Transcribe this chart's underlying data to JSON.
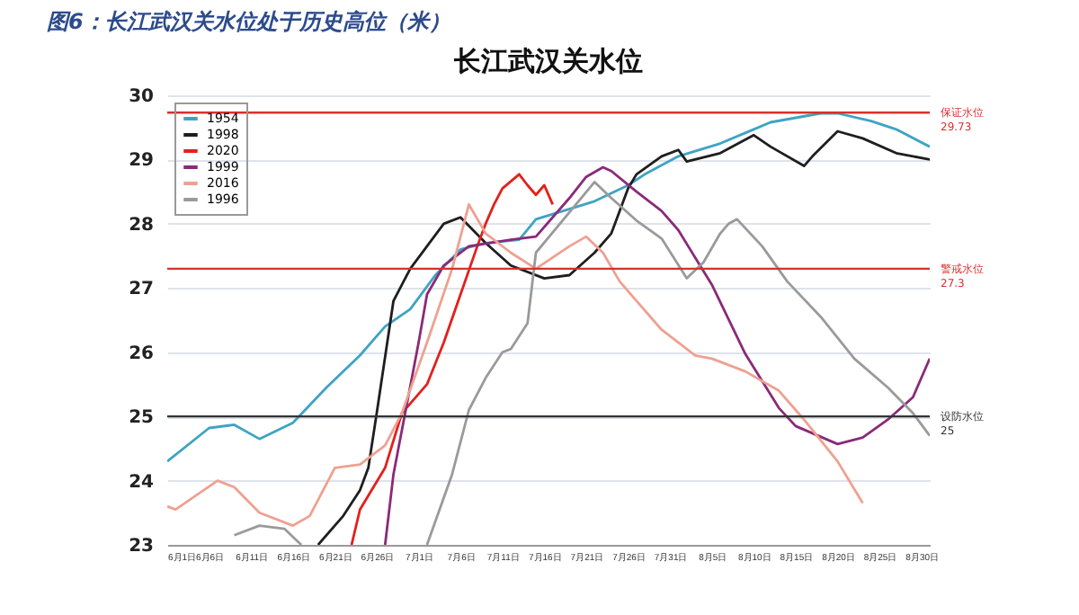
{
  "chart_data": {
    "type": "line",
    "title": "长江武汉关水位",
    "annotations": [
      "图6：长江武汉关水位处于历史高位（米）"
    ],
    "xlim": [
      "--06-01",
      "--08-31"
    ],
    "xticks": [
      {
        "value": "--06-01",
        "label": "6月1日"
      },
      {
        "value": "--06-06",
        "label": "6月6日"
      },
      {
        "value": "--06-11",
        "label": "6月11日"
      },
      {
        "value": "--06-16",
        "label": "6月16日"
      },
      {
        "value": "--06-21",
        "label": "6月21日"
      },
      {
        "value": "--06-26",
        "label": "6月26日"
      },
      {
        "value": "--07-01",
        "label": "7月1日"
      },
      {
        "value": "--07-06",
        "label": "7月6日"
      },
      {
        "value": "--07-11",
        "label": "7月11日"
      },
      {
        "value": "--07-16",
        "label": "7月16日"
      },
      {
        "value": "--07-21",
        "label": "7月21日"
      },
      {
        "value": "--07-26",
        "label": "7月26日"
      },
      {
        "value": "--07-31",
        "label": "7月31日"
      },
      {
        "value": "--08-05",
        "label": "8月5日"
      },
      {
        "value": "--08-10",
        "label": "8月10日"
      },
      {
        "value": "--08-15",
        "label": "8月15日"
      },
      {
        "value": "--08-20",
        "label": "8月20日"
      },
      {
        "value": "--08-25",
        "label": "8月25日"
      },
      {
        "value": "--08-30",
        "label": "8月30日"
      }
    ],
    "ylim": [
      23,
      30
    ],
    "yticks": [
      23,
      24,
      25,
      26,
      27,
      28,
      29,
      30
    ],
    "grid": "y",
    "legend": "top left",
    "marker": "none",
    "line_style": "solid",
    "ref_lines": [
      {
        "axis": "y",
        "value": 29.73,
        "label": "保证水位\n29.73",
        "color": "#d9302c"
      },
      {
        "axis": "y",
        "value": 27.3,
        "label": "警戒水位\n27.3",
        "color": "#d9302c"
      },
      {
        "axis": "y",
        "value": 25,
        "label": "设防水位\n25",
        "color": "#333333"
      }
    ],
    "series": [
      {
        "name": "1954",
        "color": "#3fa3c4",
        "x": [
          "--06-01",
          "--06-06",
          "--06-09",
          "--06-12",
          "--06-16",
          "--06-20",
          "--06-24",
          "--06-27",
          "--06-30",
          "--07-03",
          "--07-06",
          "--07-09",
          "--07-13",
          "--07-15",
          "--07-22",
          "--07-26",
          "--07-28",
          "--08-01",
          "--08-06",
          "--08-10",
          "--08-12",
          "--08-18",
          "--08-20",
          "--08-24",
          "--08-27",
          "--08-31"
        ],
        "values": [
          24.3,
          24.82,
          24.87,
          24.65,
          24.9,
          25.45,
          25.95,
          26.4,
          26.67,
          27.2,
          27.6,
          27.7,
          27.75,
          28.07,
          28.35,
          28.6,
          28.77,
          29.05,
          29.25,
          29.47,
          29.58,
          29.72,
          29.72,
          29.6,
          29.47,
          29.2
        ]
      },
      {
        "name": "1998",
        "color": "#1e1e1e",
        "x": [
          "--06-19",
          "--06-22",
          "--06-24",
          "--06-25",
          "--06-26",
          "--06-28",
          "--06-30",
          "--07-02",
          "--07-04",
          "--07-06",
          "--07-09",
          "--07-12",
          "--07-16",
          "--07-19",
          "--07-22",
          "--07-24",
          "--07-26",
          "--07-27",
          "--07-30",
          "--08-01",
          "--08-02",
          "--08-06",
          "--08-10",
          "--08-12",
          "--08-16",
          "--08-17",
          "--08-20",
          "--08-23",
          "--08-27",
          "--08-31"
        ],
        "values": [
          23.0,
          23.45,
          23.85,
          24.2,
          25.05,
          26.8,
          27.3,
          27.65,
          28.0,
          28.1,
          27.7,
          27.35,
          27.15,
          27.2,
          27.55,
          27.85,
          28.55,
          28.77,
          29.05,
          29.15,
          28.97,
          29.1,
          29.38,
          29.2,
          28.9,
          29.05,
          29.44,
          29.33,
          29.1,
          29.0
        ]
      },
      {
        "name": "2020",
        "color": "#e3201c",
        "x": [
          "--06-23",
          "--06-24",
          "--06-27",
          "--06-29",
          "--07-02",
          "--07-04",
          "--07-06",
          "--07-08",
          "--07-09",
          "--07-10",
          "--07-11",
          "--07-13",
          "--07-14",
          "--07-15",
          "--07-16",
          "--07-17"
        ],
        "values": [
          23.0,
          23.55,
          24.2,
          25.05,
          25.5,
          26.15,
          26.9,
          27.65,
          28.0,
          28.3,
          28.55,
          28.77,
          28.6,
          28.45,
          28.6,
          28.3
        ]
      },
      {
        "name": "1999",
        "color": "#8a2a78",
        "x": [
          "--06-27",
          "--06-28",
          "--07-01",
          "--07-02",
          "--07-04",
          "--07-07",
          "--07-12",
          "--07-15",
          "--07-19",
          "--07-21",
          "--07-23",
          "--07-24",
          "--07-27",
          "--07-30",
          "--08-01",
          "--08-05",
          "--08-09",
          "--08-13",
          "--08-15",
          "--08-20",
          "--08-23",
          "--08-26",
          "--08-29",
          "--08-31"
        ],
        "values": [
          23.0,
          24.1,
          26.15,
          26.9,
          27.35,
          27.65,
          27.75,
          27.8,
          28.4,
          28.73,
          28.88,
          28.82,
          28.5,
          28.2,
          27.9,
          27.05,
          25.97,
          25.13,
          24.85,
          24.57,
          24.67,
          24.95,
          25.3,
          25.9
        ]
      },
      {
        "name": "2016",
        "color": "#eea191",
        "x": [
          "--06-01",
          "--06-02",
          "--06-07",
          "--06-09",
          "--06-12",
          "--06-16",
          "--06-18",
          "--06-21",
          "--06-24",
          "--06-27",
          "--06-29",
          "--07-02",
          "--07-05",
          "--07-07",
          "--07-09",
          "--07-12",
          "--07-15",
          "--07-19",
          "--07-21",
          "--07-23",
          "--07-25",
          "--07-30",
          "--08-03",
          "--08-05",
          "--08-09",
          "--08-13",
          "--08-16",
          "--08-20",
          "--08-23"
        ],
        "values": [
          23.6,
          23.55,
          24.0,
          23.9,
          23.5,
          23.3,
          23.45,
          24.2,
          24.25,
          24.55,
          25.05,
          26.15,
          27.3,
          28.3,
          27.85,
          27.55,
          27.3,
          27.65,
          27.8,
          27.55,
          27.1,
          26.35,
          25.95,
          25.9,
          25.7,
          25.4,
          24.95,
          24.3,
          23.65
        ]
      },
      {
        "name": "1996",
        "color": "#9a9a9a",
        "x": [
          "--06-09",
          "--06-12",
          "--06-15",
          "--06-17",
          "--06-25",
          "--07-02",
          "--07-05",
          "--07-07",
          "--07-09",
          "--07-11",
          "--07-12",
          "--07-14",
          "--07-15",
          "--07-22",
          "--07-24",
          "--07-27",
          "--07-30",
          "--08-02",
          "--08-04",
          "--08-06",
          "--08-07",
          "--08-08",
          "--08-11",
          "--08-14",
          "--08-18",
          "--08-22",
          "--08-26",
          "--08-29",
          "--08-31"
        ],
        "values": [
          23.15,
          23.3,
          23.25,
          23.0,
          null,
          23.0,
          24.1,
          25.1,
          25.6,
          26.0,
          26.05,
          26.45,
          27.55,
          28.65,
          28.4,
          28.05,
          27.77,
          27.15,
          27.4,
          27.85,
          28.0,
          28.07,
          27.65,
          27.1,
          26.55,
          25.9,
          25.45,
          25.05,
          24.7
        ]
      }
    ]
  }
}
